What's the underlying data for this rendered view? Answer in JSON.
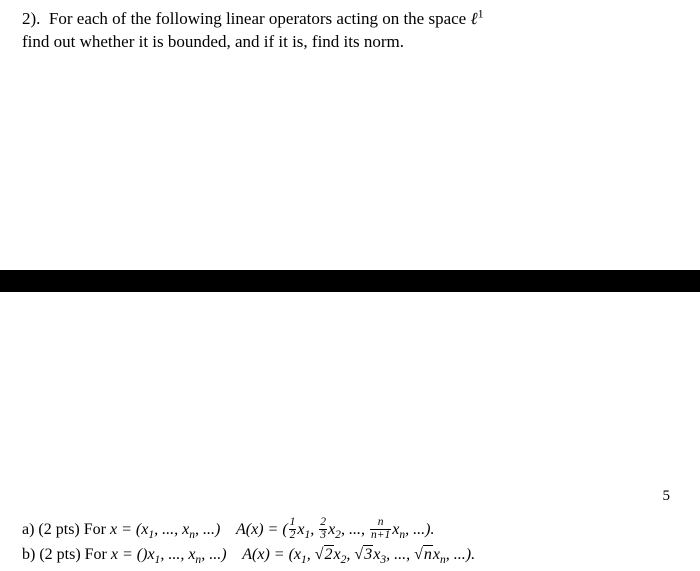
{
  "problem": {
    "number": "2).",
    "intro_line1": "For each of the following linear operators acting on the space",
    "space_symbol": "ℓ",
    "space_exponent": "1",
    "intro_line2": "find out whether it is bounded, and if it is, find its norm."
  },
  "page_number": "5",
  "part_a": {
    "label": "a) (2 pts) For",
    "x_eq": "x = (x",
    "sub1": "1",
    "comma_dots": ", ..., x",
    "subn": "n",
    "tail": ", ...)",
    "Ax": "A(x) = (",
    "f1_num": "1",
    "f1_den": "2",
    "f1_after": "x",
    "f1_sub": "1",
    "c1": ", ",
    "f2_num": "2",
    "f2_den": "3",
    "f2_after": "x",
    "f2_sub": "2",
    "c2": ", ..., ",
    "fn_num": "n",
    "fn_den": "n+1",
    "fn_after": "x",
    "fn_sub": "n",
    "end": ", ...)."
  },
  "part_b": {
    "label": "b) (2 pts) For",
    "x_eq": "x = ()x",
    "sub1": "1",
    "comma_dots": ", ..., x",
    "subn": "n",
    "tail": ", ...)",
    "Ax": "A(x) = (x",
    "t1_sub": "1",
    "c1": ", ",
    "r2": "2",
    "r2x": "x",
    "r2_sub": "2",
    "c2": ", ",
    "r3": "3",
    "r3x": "x",
    "r3_sub": "3",
    "c3": ", ..., ",
    "rn": "n",
    "rnx": "x",
    "rn_sub": "n",
    "end": ", ...)."
  },
  "sqrt_symbol": "√"
}
